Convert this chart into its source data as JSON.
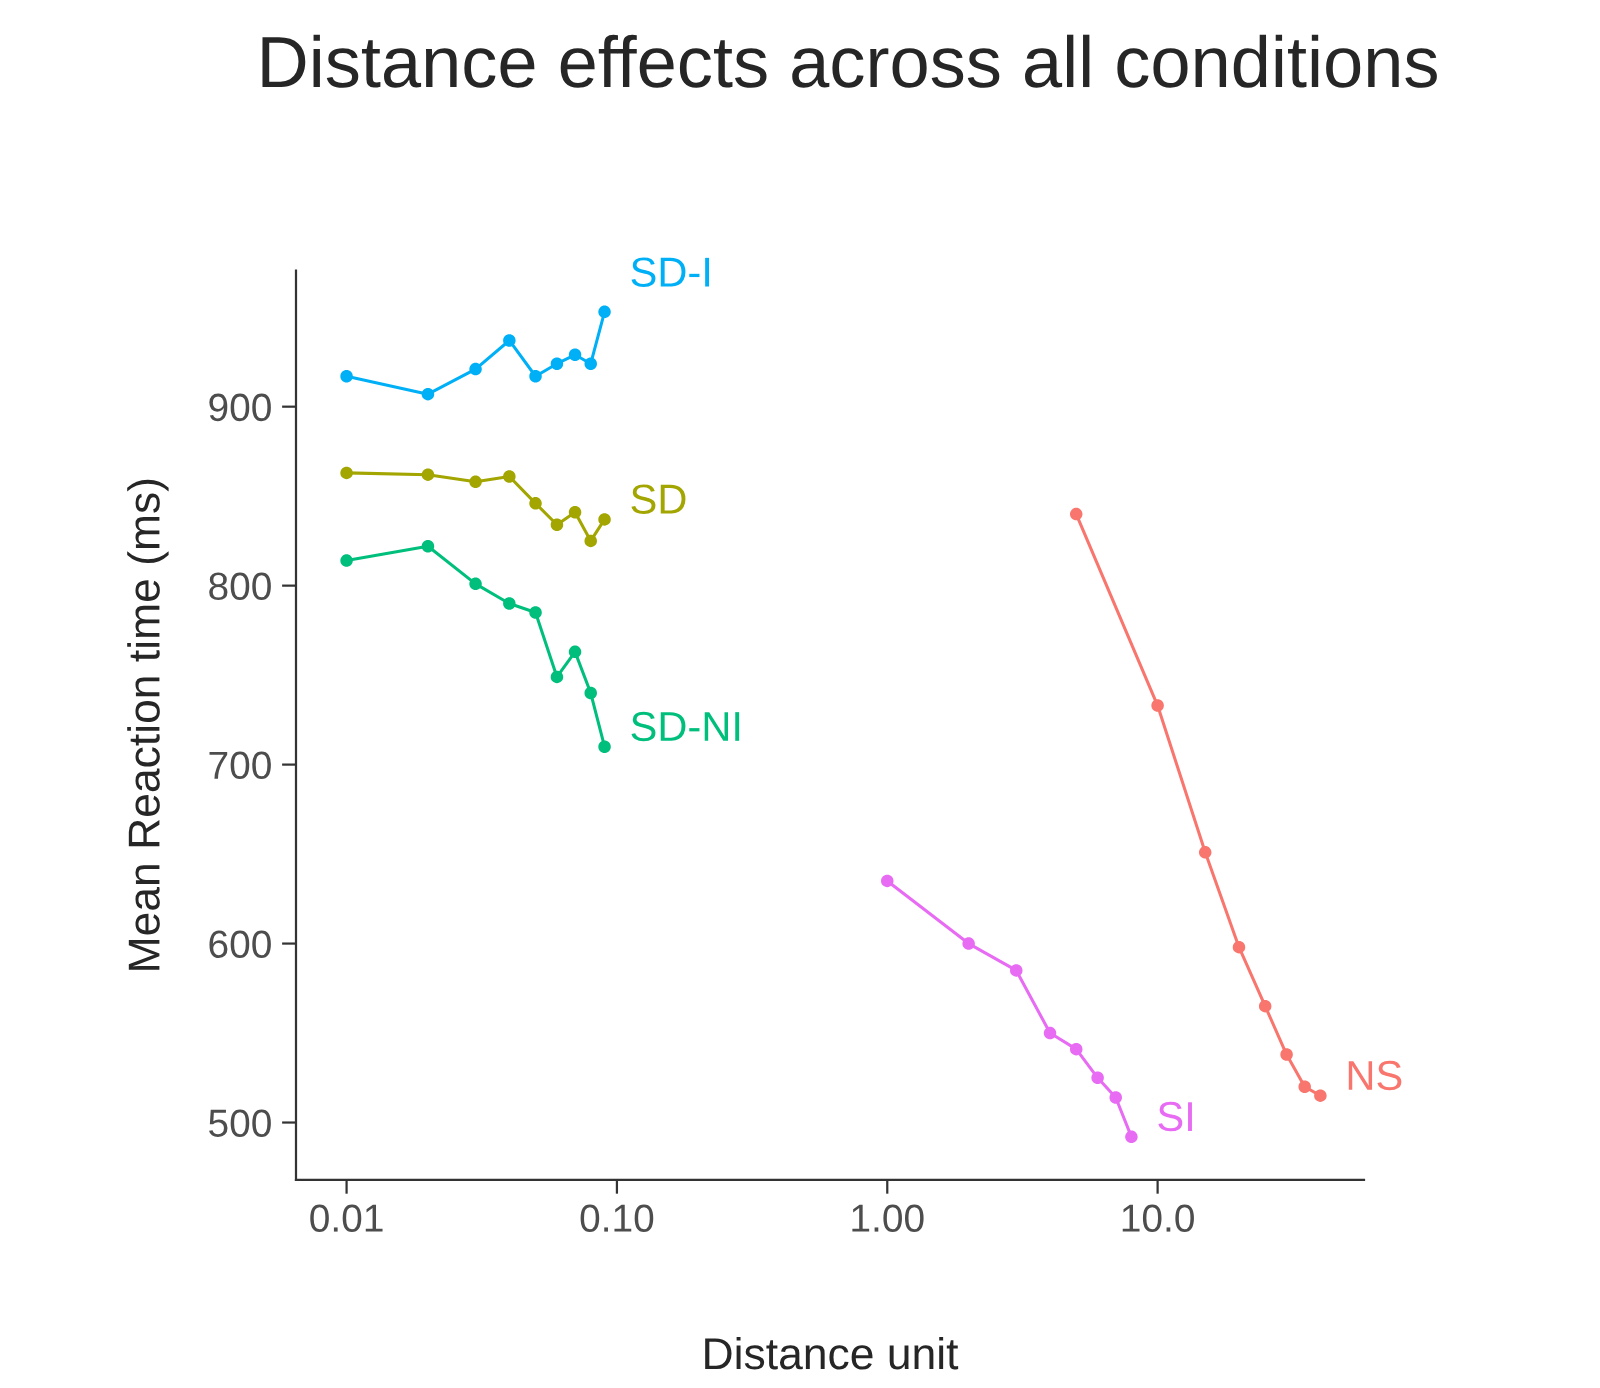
{
  "chart_data": {
    "type": "line",
    "title": "Distance effects across all conditions",
    "xlabel": "Distance unit",
    "ylabel": "Mean Reaction time (ms)",
    "log": "x",
    "xlim": [
      0.0065,
      58
    ],
    "xticks": [
      {
        "value": 0.01,
        "label": "0.01"
      },
      {
        "value": 0.1,
        "label": "0.10"
      },
      {
        "value": 1,
        "label": "1.00"
      },
      {
        "value": 10,
        "label": "10.0"
      }
    ],
    "ylim": [
      468,
      976
    ],
    "yticks": [
      500,
      600,
      700,
      800,
      900
    ],
    "grid": false,
    "legend": false,
    "marker": "circle",
    "line_style": "solid",
    "series": [
      {
        "name": "SD-I",
        "color": "#00b0f6",
        "x": [
          0.01,
          0.02,
          0.03,
          0.04,
          0.05,
          0.06,
          0.07,
          0.08,
          0.09
        ],
        "values": [
          917,
          907,
          921,
          937,
          917,
          924,
          929,
          924,
          953
        ]
      },
      {
        "name": "SD",
        "color": "#a3a500",
        "x": [
          0.01,
          0.02,
          0.03,
          0.04,
          0.05,
          0.06,
          0.07,
          0.08,
          0.09
        ],
        "values": [
          863,
          862,
          858,
          861,
          846,
          834,
          841,
          825,
          837
        ]
      },
      {
        "name": "SD-NI",
        "color": "#00bf7d",
        "x": [
          0.01,
          0.02,
          0.03,
          0.04,
          0.05,
          0.06,
          0.07,
          0.08,
          0.09
        ],
        "values": [
          814,
          822,
          801,
          790,
          785,
          749,
          763,
          740,
          710
        ]
      },
      {
        "name": "SI",
        "color": "#e76bf3",
        "x": [
          1,
          2,
          3,
          4,
          5,
          6,
          7,
          8
        ],
        "values": [
          635,
          600,
          585,
          550,
          541,
          525,
          514,
          492
        ]
      },
      {
        "name": "NS",
        "color": "#f8766d",
        "x": [
          5,
          10,
          15,
          20,
          25,
          30,
          35,
          40
        ],
        "values": [
          840,
          733,
          651,
          598,
          565,
          538,
          520,
          515
        ]
      }
    ]
  }
}
